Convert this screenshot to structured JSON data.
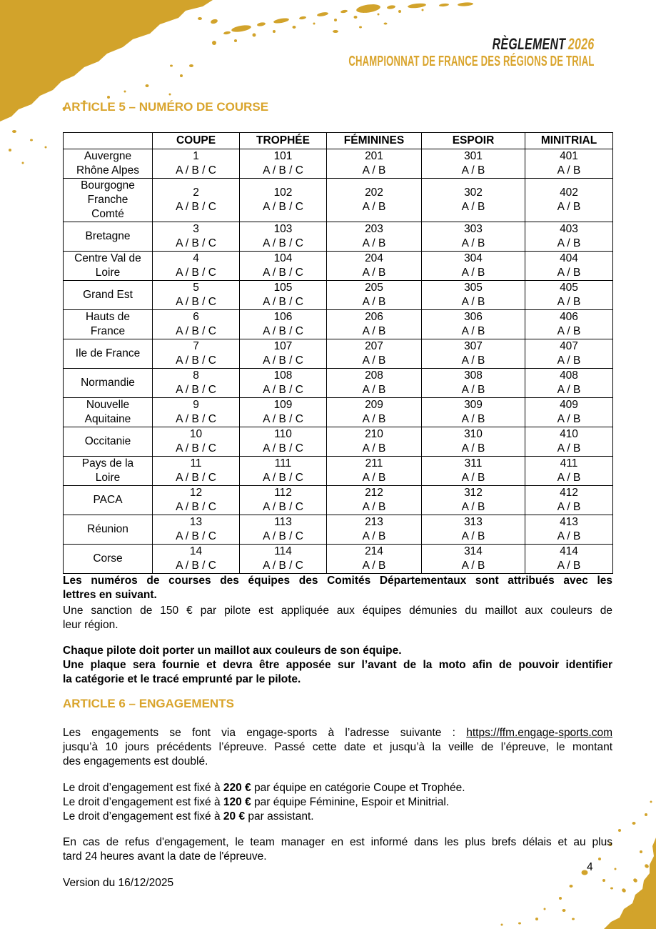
{
  "header": {
    "title_main": "RÈGLEMENT",
    "title_year": "2026",
    "subtitle": "CHAMPIONNAT DE FRANCE DES RÉGIONS DE TRIAL"
  },
  "article5": {
    "heading": "ARTICLE 5 – NUMÉRO DE COURSE",
    "table": {
      "columns": [
        "",
        "COUPE",
        "TROPHÉE",
        "FÉMININES",
        "ESPOIR",
        "MINITRIAL"
      ],
      "rows": [
        {
          "region": [
            "Auvergne",
            "Rhône Alpes"
          ],
          "cells": [
            [
              "1",
              "A / B / C"
            ],
            [
              "101",
              "A / B / C"
            ],
            [
              "201",
              "A / B"
            ],
            [
              "301",
              "A / B"
            ],
            [
              "401",
              "A / B"
            ]
          ]
        },
        {
          "region": [
            "Bourgogne",
            "Franche",
            "Comté"
          ],
          "cells": [
            [
              "2",
              "A / B / C"
            ],
            [
              "102",
              "A / B / C"
            ],
            [
              "202",
              "A / B"
            ],
            [
              "302",
              "A / B"
            ],
            [
              "402",
              "A / B"
            ]
          ]
        },
        {
          "region": [
            "Bretagne"
          ],
          "cells": [
            [
              "3",
              "A / B / C"
            ],
            [
              "103",
              "A / B / C"
            ],
            [
              "203",
              "A / B"
            ],
            [
              "303",
              "A / B"
            ],
            [
              "403",
              "A / B"
            ]
          ]
        },
        {
          "region": [
            "Centre Val de",
            "Loire"
          ],
          "cells": [
            [
              "4",
              "A / B / C"
            ],
            [
              "104",
              "A / B / C"
            ],
            [
              "204",
              "A / B"
            ],
            [
              "304",
              "A / B"
            ],
            [
              "404",
              "A / B"
            ]
          ]
        },
        {
          "region": [
            "Grand Est"
          ],
          "cells": [
            [
              "5",
              "A / B / C"
            ],
            [
              "105",
              "A / B / C"
            ],
            [
              "205",
              "A / B"
            ],
            [
              "305",
              "A / B"
            ],
            [
              "405",
              "A / B"
            ]
          ]
        },
        {
          "region": [
            "Hauts de",
            "France"
          ],
          "cells": [
            [
              "6",
              "A / B / C"
            ],
            [
              "106",
              "A / B / C"
            ],
            [
              "206",
              "A / B"
            ],
            [
              "306",
              "A / B"
            ],
            [
              "406",
              "A / B"
            ]
          ]
        },
        {
          "region": [
            "Ile de France"
          ],
          "cells": [
            [
              "7",
              "A / B / C"
            ],
            [
              "107",
              "A / B / C"
            ],
            [
              "207",
              "A / B"
            ],
            [
              "307",
              "A / B"
            ],
            [
              "407",
              "A / B"
            ]
          ]
        },
        {
          "region": [
            "Normandie"
          ],
          "cells": [
            [
              "8",
              "A / B / C"
            ],
            [
              "108",
              "A / B / C"
            ],
            [
              "208",
              "A / B"
            ],
            [
              "308",
              "A / B"
            ],
            [
              "408",
              "A / B"
            ]
          ]
        },
        {
          "region": [
            "Nouvelle",
            "Aquitaine"
          ],
          "cells": [
            [
              "9",
              "A / B / C"
            ],
            [
              "109",
              "A / B / C"
            ],
            [
              "209",
              "A / B"
            ],
            [
              "309",
              "A / B"
            ],
            [
              "409",
              "A / B"
            ]
          ]
        },
        {
          "region": [
            "Occitanie"
          ],
          "cells": [
            [
              "10",
              "A / B / C"
            ],
            [
              "110",
              "A / B / C"
            ],
            [
              "210",
              "A / B"
            ],
            [
              "310",
              "A / B"
            ],
            [
              "410",
              "A / B"
            ]
          ]
        },
        {
          "region": [
            "Pays de la",
            "Loire"
          ],
          "cells": [
            [
              "11",
              "A / B / C"
            ],
            [
              "111",
              "A / B / C"
            ],
            [
              "211",
              "A / B"
            ],
            [
              "311",
              "A / B"
            ],
            [
              "411",
              "A / B"
            ]
          ]
        },
        {
          "region": [
            "PACA"
          ],
          "cells": [
            [
              "12",
              "A / B / C"
            ],
            [
              "112",
              "A / B / C"
            ],
            [
              "212",
              "A / B"
            ],
            [
              "312",
              "A / B"
            ],
            [
              "412",
              "A / B"
            ]
          ]
        },
        {
          "region": [
            "Réunion"
          ],
          "cells": [
            [
              "13",
              "A / B / C"
            ],
            [
              "113",
              "A / B / C"
            ],
            [
              "213",
              "A / B"
            ],
            [
              "313",
              "A / B"
            ],
            [
              "413",
              "A / B"
            ]
          ]
        },
        {
          "region": [
            "Corse"
          ],
          "cells": [
            [
              "14",
              "A / B / C"
            ],
            [
              "114",
              "A / B / C"
            ],
            [
              "214",
              "A / B"
            ],
            [
              "314",
              "A / B"
            ],
            [
              "414",
              "A / B"
            ]
          ]
        }
      ]
    },
    "numbering_lines": [
      "Les numéros de courses des équipes des Comités Départementaux sont attribués avec les",
      "lettres en suivant."
    ],
    "sanction_lines": [
      "Une sanction de 150 € par pilote est appliquée aux équipes démunies du maillot aux couleurs de",
      "leur région."
    ],
    "jersey_lines": [
      "Chaque pilote doit porter un maillot aux couleurs de son équipe."
    ],
    "plate_lines": [
      "Une plaque sera fournie et devra être apposée sur l’avant de la moto afin de pouvoir identifier",
      "la catégorie et le tracé emprunté par le pilote."
    ]
  },
  "article6": {
    "heading": "ARTICLE 6 – ENGAGEMENTS",
    "intro": {
      "pre": "Les engagements se font via engage-sports à l’adresse suivante : ",
      "link": "https://ffm.engage-sports.com"
    },
    "intro_rest_lines": [
      "jusqu’à 10 jours précédents l’épreuve. Passé cette date et jusqu’à la veille de l’épreuve, le montant",
      "des engagements est doublé."
    ],
    "fees": [
      {
        "pre": "Le droit d’engagement est fixé à ",
        "amount": "220 €",
        "post": " par équipe en catégorie Coupe et Trophée."
      },
      {
        "pre": "Le droit d’engagement est fixé à ",
        "amount": "120 €",
        "post": " par équipe Féminine, Espoir et Minitrial."
      },
      {
        "pre": "Le droit d’engagement est fixé à ",
        "amount": "20 €",
        "post": " par assistant."
      }
    ],
    "refusal_lines": [
      "En cas de refus d'engagement, le team manager en est informé dans les plus brefs délais et au plus",
      "tard 24 heures avant la date de l'épreuve."
    ]
  },
  "footer": {
    "page_number": "4",
    "version": "Version du 16/12/2025"
  },
  "colors": {
    "brush_gold": "#d2a32b",
    "heading_gold": "#d9a42c",
    "text_black": "#000000"
  }
}
